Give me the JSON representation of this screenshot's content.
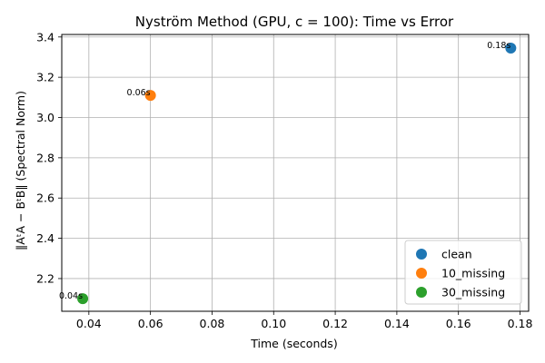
{
  "chart_data": {
    "type": "scatter",
    "title": "Nyström Method (GPU, c = 100): Time vs Error",
    "xlabel": "Time (seconds)",
    "ylabel": "‖AᵗA − BᵗB‖ (Spectral Norm)",
    "xlim": [
      0.0312,
      0.1828
    ],
    "ylim": [
      2.0375,
      3.4125
    ],
    "xticks": [
      0.04,
      0.06,
      0.08,
      0.1,
      0.12,
      0.14,
      0.16,
      0.18
    ],
    "xtick_labels": [
      "0.04",
      "0.06",
      "0.08",
      "0.10",
      "0.12",
      "0.14",
      "0.16",
      "0.18"
    ],
    "yticks": [
      2.2,
      2.4,
      2.6,
      2.8,
      3.0,
      3.2,
      3.4
    ],
    "ytick_labels": [
      "2.2",
      "2.4",
      "2.6",
      "2.8",
      "3.0",
      "3.2",
      "3.4"
    ],
    "grid": true,
    "legend_position": "bottom-right",
    "series": [
      {
        "name": "clean",
        "color": "#1f77b4",
        "x": [
          0.177
        ],
        "y": [
          3.345
        ],
        "labels": [
          "0.18s"
        ]
      },
      {
        "name": "10_missing",
        "color": "#ff7f0e",
        "x": [
          0.06
        ],
        "y": [
          3.11
        ],
        "labels": [
          "0.06s"
        ]
      },
      {
        "name": "30_missing",
        "color": "#2ca02c",
        "x": [
          0.038
        ],
        "y": [
          2.1
        ],
        "labels": [
          "0.04s"
        ]
      }
    ]
  }
}
